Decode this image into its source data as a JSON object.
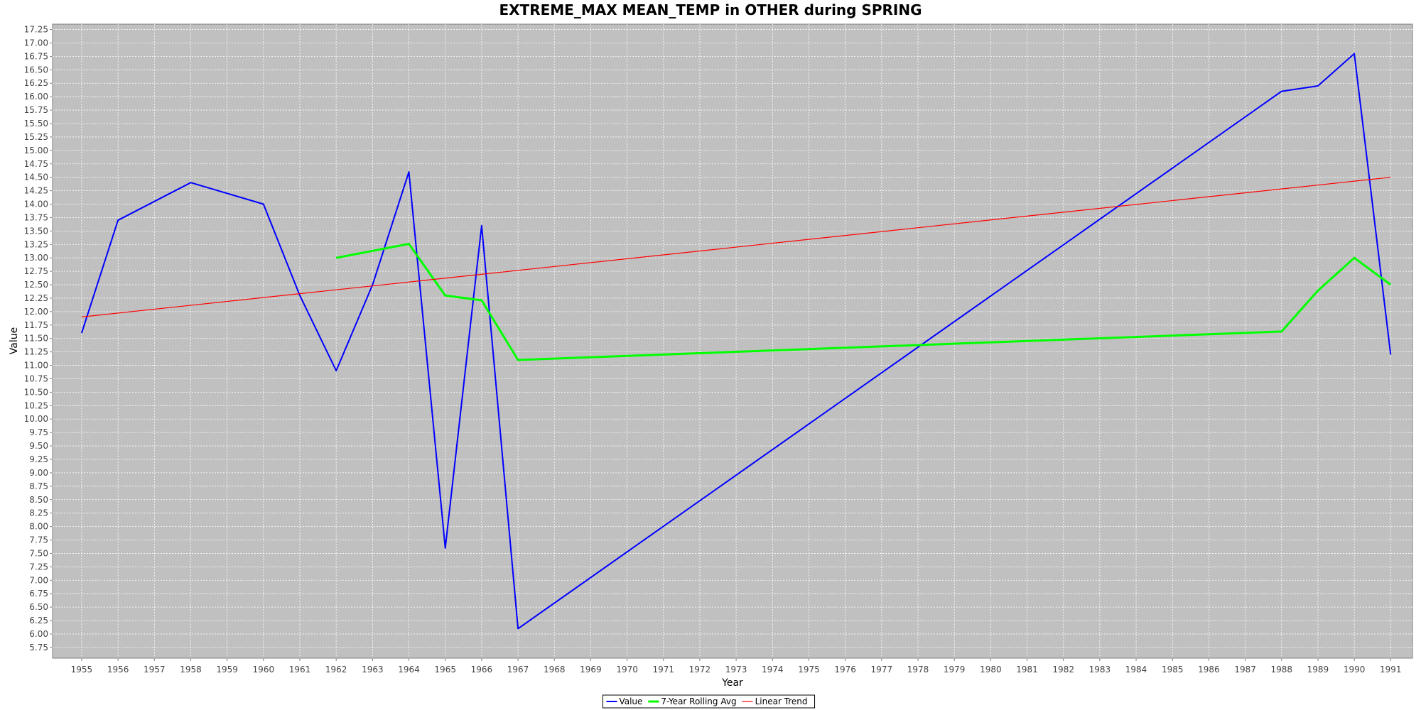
{
  "chart_data": {
    "type": "line",
    "title": "EXTREME_MAX MEAN_TEMP in OTHER during SPRING",
    "xlabel": "Year",
    "ylabel": "Value",
    "xlim": [
      1954.2,
      1991.6
    ],
    "ylim": [
      5.55,
      17.35
    ],
    "x_ticks": [
      1955,
      1956,
      1957,
      1958,
      1959,
      1960,
      1961,
      1962,
      1963,
      1964,
      1965,
      1966,
      1967,
      1968,
      1969,
      1970,
      1971,
      1972,
      1973,
      1974,
      1975,
      1976,
      1977,
      1978,
      1979,
      1980,
      1981,
      1982,
      1983,
      1984,
      1985,
      1986,
      1987,
      1988,
      1989,
      1990,
      1991
    ],
    "y_ticks": [
      5.75,
      6.0,
      6.25,
      6.5,
      6.75,
      7.0,
      7.25,
      7.5,
      7.75,
      8.0,
      8.25,
      8.5,
      8.75,
      9.0,
      9.25,
      9.5,
      9.75,
      10.0,
      10.25,
      10.5,
      10.75,
      11.0,
      11.25,
      11.5,
      11.75,
      12.0,
      12.25,
      12.5,
      12.75,
      13.0,
      13.25,
      13.5,
      13.75,
      14.0,
      14.25,
      14.5,
      14.75,
      15.0,
      15.25,
      15.5,
      15.75,
      16.0,
      16.25,
      16.5,
      16.75,
      17.0,
      17.25
    ],
    "grid": true,
    "legend_position": "bottom-center",
    "series": [
      {
        "name": "Value",
        "color": "#0000ff",
        "x": [
          1955,
          1956,
          1958,
          1960,
          1961,
          1962,
          1963,
          1964,
          1965,
          1966,
          1967,
          1988,
          1989,
          1990,
          1991
        ],
        "values": [
          11.6,
          13.7,
          14.4,
          14.0,
          12.3,
          10.9,
          12.5,
          14.6,
          7.6,
          13.6,
          6.1,
          16.1,
          16.2,
          16.8,
          11.2
        ]
      },
      {
        "name": "7-Year Rolling Avg",
        "color": "#00ff00",
        "x": [
          1962,
          1964,
          1965,
          1966,
          1967,
          1988,
          1989,
          1990,
          1991
        ],
        "values": [
          13.0,
          13.26,
          12.3,
          12.21,
          11.1,
          11.63,
          12.39,
          13.0,
          12.5
        ]
      },
      {
        "name": "Linear Trend",
        "color": "#ff0000",
        "x": [
          1955,
          1991
        ],
        "values": [
          11.9,
          14.5
        ]
      }
    ]
  }
}
